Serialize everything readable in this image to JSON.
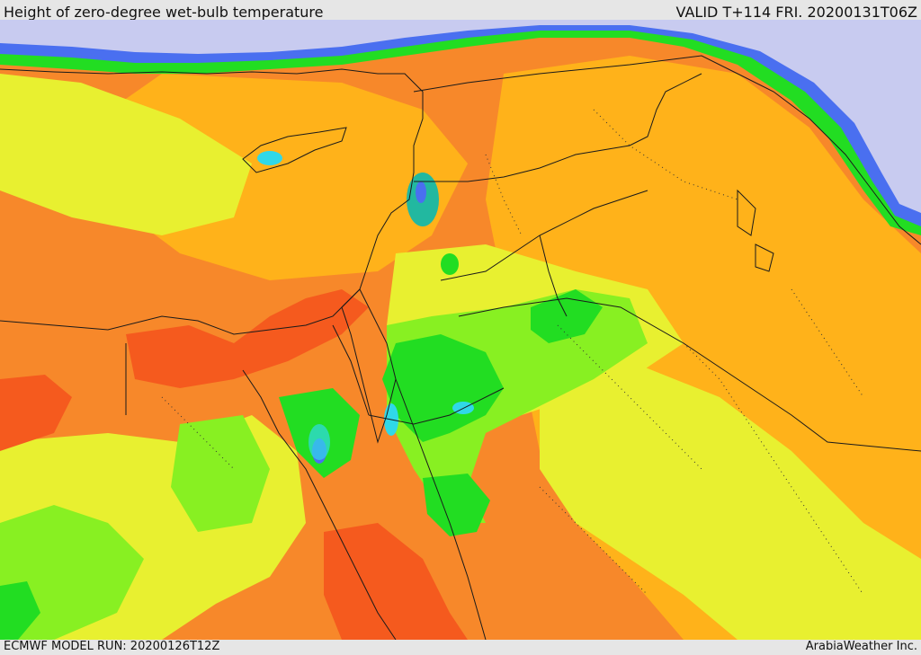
{
  "header": {
    "title": "Height of zero-degree wet-bulb temperature",
    "valid_time": "VALID T+114 FRI. 20200131T06Z"
  },
  "footer": {
    "model_run": "ECMWF MODEL RUN: 20200126T12Z",
    "credit": "ArabiaWeather Inc."
  },
  "colors": {
    "sea": "#c8cbf0",
    "blue": "#4a6ff0",
    "cyan": "#30d8e8",
    "teal": "#22b8a0",
    "green": "#22dd22",
    "light_green": "#88f022",
    "yellow": "#e8f030",
    "amber": "#ffb21a",
    "orange": "#f7882a",
    "red_orange": "#f55a1e",
    "border_line": "#1a1a1a"
  }
}
